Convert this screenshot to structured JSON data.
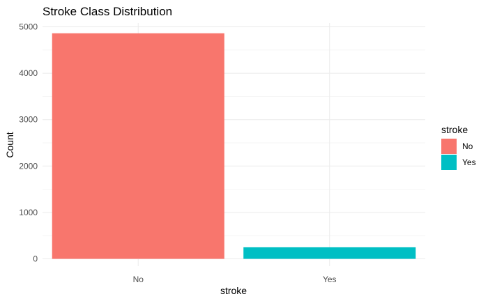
{
  "chart_data": {
    "type": "bar",
    "title": "Stroke Class Distribution",
    "xlabel": "stroke",
    "ylabel": "Count",
    "categories": [
      "No",
      "Yes"
    ],
    "values": [
      4861,
      249
    ],
    "colors": [
      "#F8766D",
      "#00BFC4"
    ],
    "ylim": [
      0,
      5000
    ],
    "yticks": [
      0,
      1000,
      2000,
      3000,
      4000,
      5000
    ],
    "ytick_labels": [
      "0",
      "1000",
      "2000",
      "3000",
      "4000",
      "5000"
    ],
    "grid": true,
    "legend": {
      "title": "stroke",
      "placement": "right",
      "entries": [
        {
          "label": "No",
          "color": "#F8766D"
        },
        {
          "label": "Yes",
          "color": "#00BFC4"
        }
      ]
    }
  }
}
